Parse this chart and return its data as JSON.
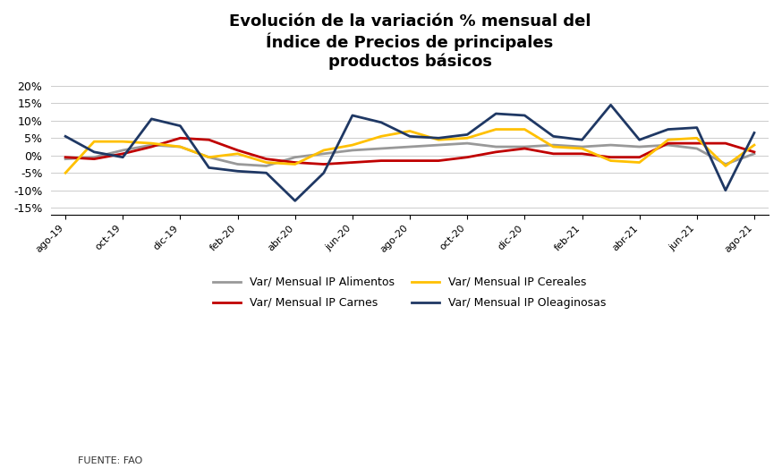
{
  "title": "Evolución de la variación % mensual del\nÍndice de Precios de principales\nproductos básicos",
  "xlabel": "",
  "ylabel": "",
  "source": "FUENTE: FAO",
  "x_labels": [
    "ago-19",
    "oct-19",
    "dic-19",
    "feb-20",
    "abr-20",
    "jun-20",
    "ago-20",
    "oct-20",
    "dic-20",
    "feb-21",
    "abr-21",
    "jun-21",
    "ago-21"
  ],
  "x_ticks_indices": [
    0,
    2,
    4,
    6,
    8,
    10,
    12,
    14,
    16,
    18,
    20,
    22,
    24
  ],
  "alimentos_color": "#999999",
  "carnes_color": "#c00000",
  "cereales_color": "#ffc000",
  "oleaginosas_color": "#1f3864",
  "alimentos_label": "Var/ Mensual IP Alimentos",
  "carnes_label": "Var/ Mensual IP Carnes",
  "cereales_label": "Var/ Mensual IP Cereales",
  "oleaginosas_label": "Var/ Mensual IP Oleaginosas",
  "alimentos": [
    -1.0,
    -0.5,
    1.5,
    3.0,
    2.5,
    -0.5,
    -2.5,
    -3.0,
    -0.5,
    0.5,
    1.5,
    2.0,
    2.5,
    3.0,
    3.5,
    2.5,
    2.5,
    3.0,
    2.5,
    3.0,
    2.5,
    3.0,
    2.0,
    -2.5,
    0.5
  ],
  "carnes": [
    -0.5,
    -1.0,
    0.5,
    2.5,
    5.0,
    4.5,
    1.5,
    -1.0,
    -2.0,
    -2.5,
    -2.0,
    -1.5,
    -1.5,
    -1.5,
    -0.5,
    1.0,
    2.0,
    0.5,
    0.5,
    -0.5,
    -0.5,
    3.5,
    3.5,
    3.5,
    1.0
  ],
  "cereales": [
    -5.0,
    4.0,
    4.0,
    3.5,
    2.5,
    -0.5,
    0.5,
    -2.0,
    -2.5,
    1.5,
    3.0,
    5.5,
    7.0,
    4.5,
    5.0,
    7.5,
    7.5,
    2.5,
    2.0,
    -1.5,
    -2.0,
    4.5,
    5.0,
    -3.0,
    3.0
  ],
  "oleaginosas": [
    5.5,
    1.0,
    -0.5,
    10.5,
    8.5,
    -3.5,
    -4.5,
    -5.0,
    -13.0,
    -5.0,
    11.5,
    9.5,
    5.5,
    5.0,
    6.0,
    12.0,
    11.5,
    5.5,
    4.5,
    14.5,
    4.5,
    7.5,
    8.0,
    -10.0,
    6.5
  ],
  "ylim": [
    -17,
    22
  ],
  "yticks": [
    -15,
    -10,
    -5,
    0,
    5,
    10,
    15,
    20
  ],
  "linewidth": 2.0,
  "background_color": "#ffffff"
}
